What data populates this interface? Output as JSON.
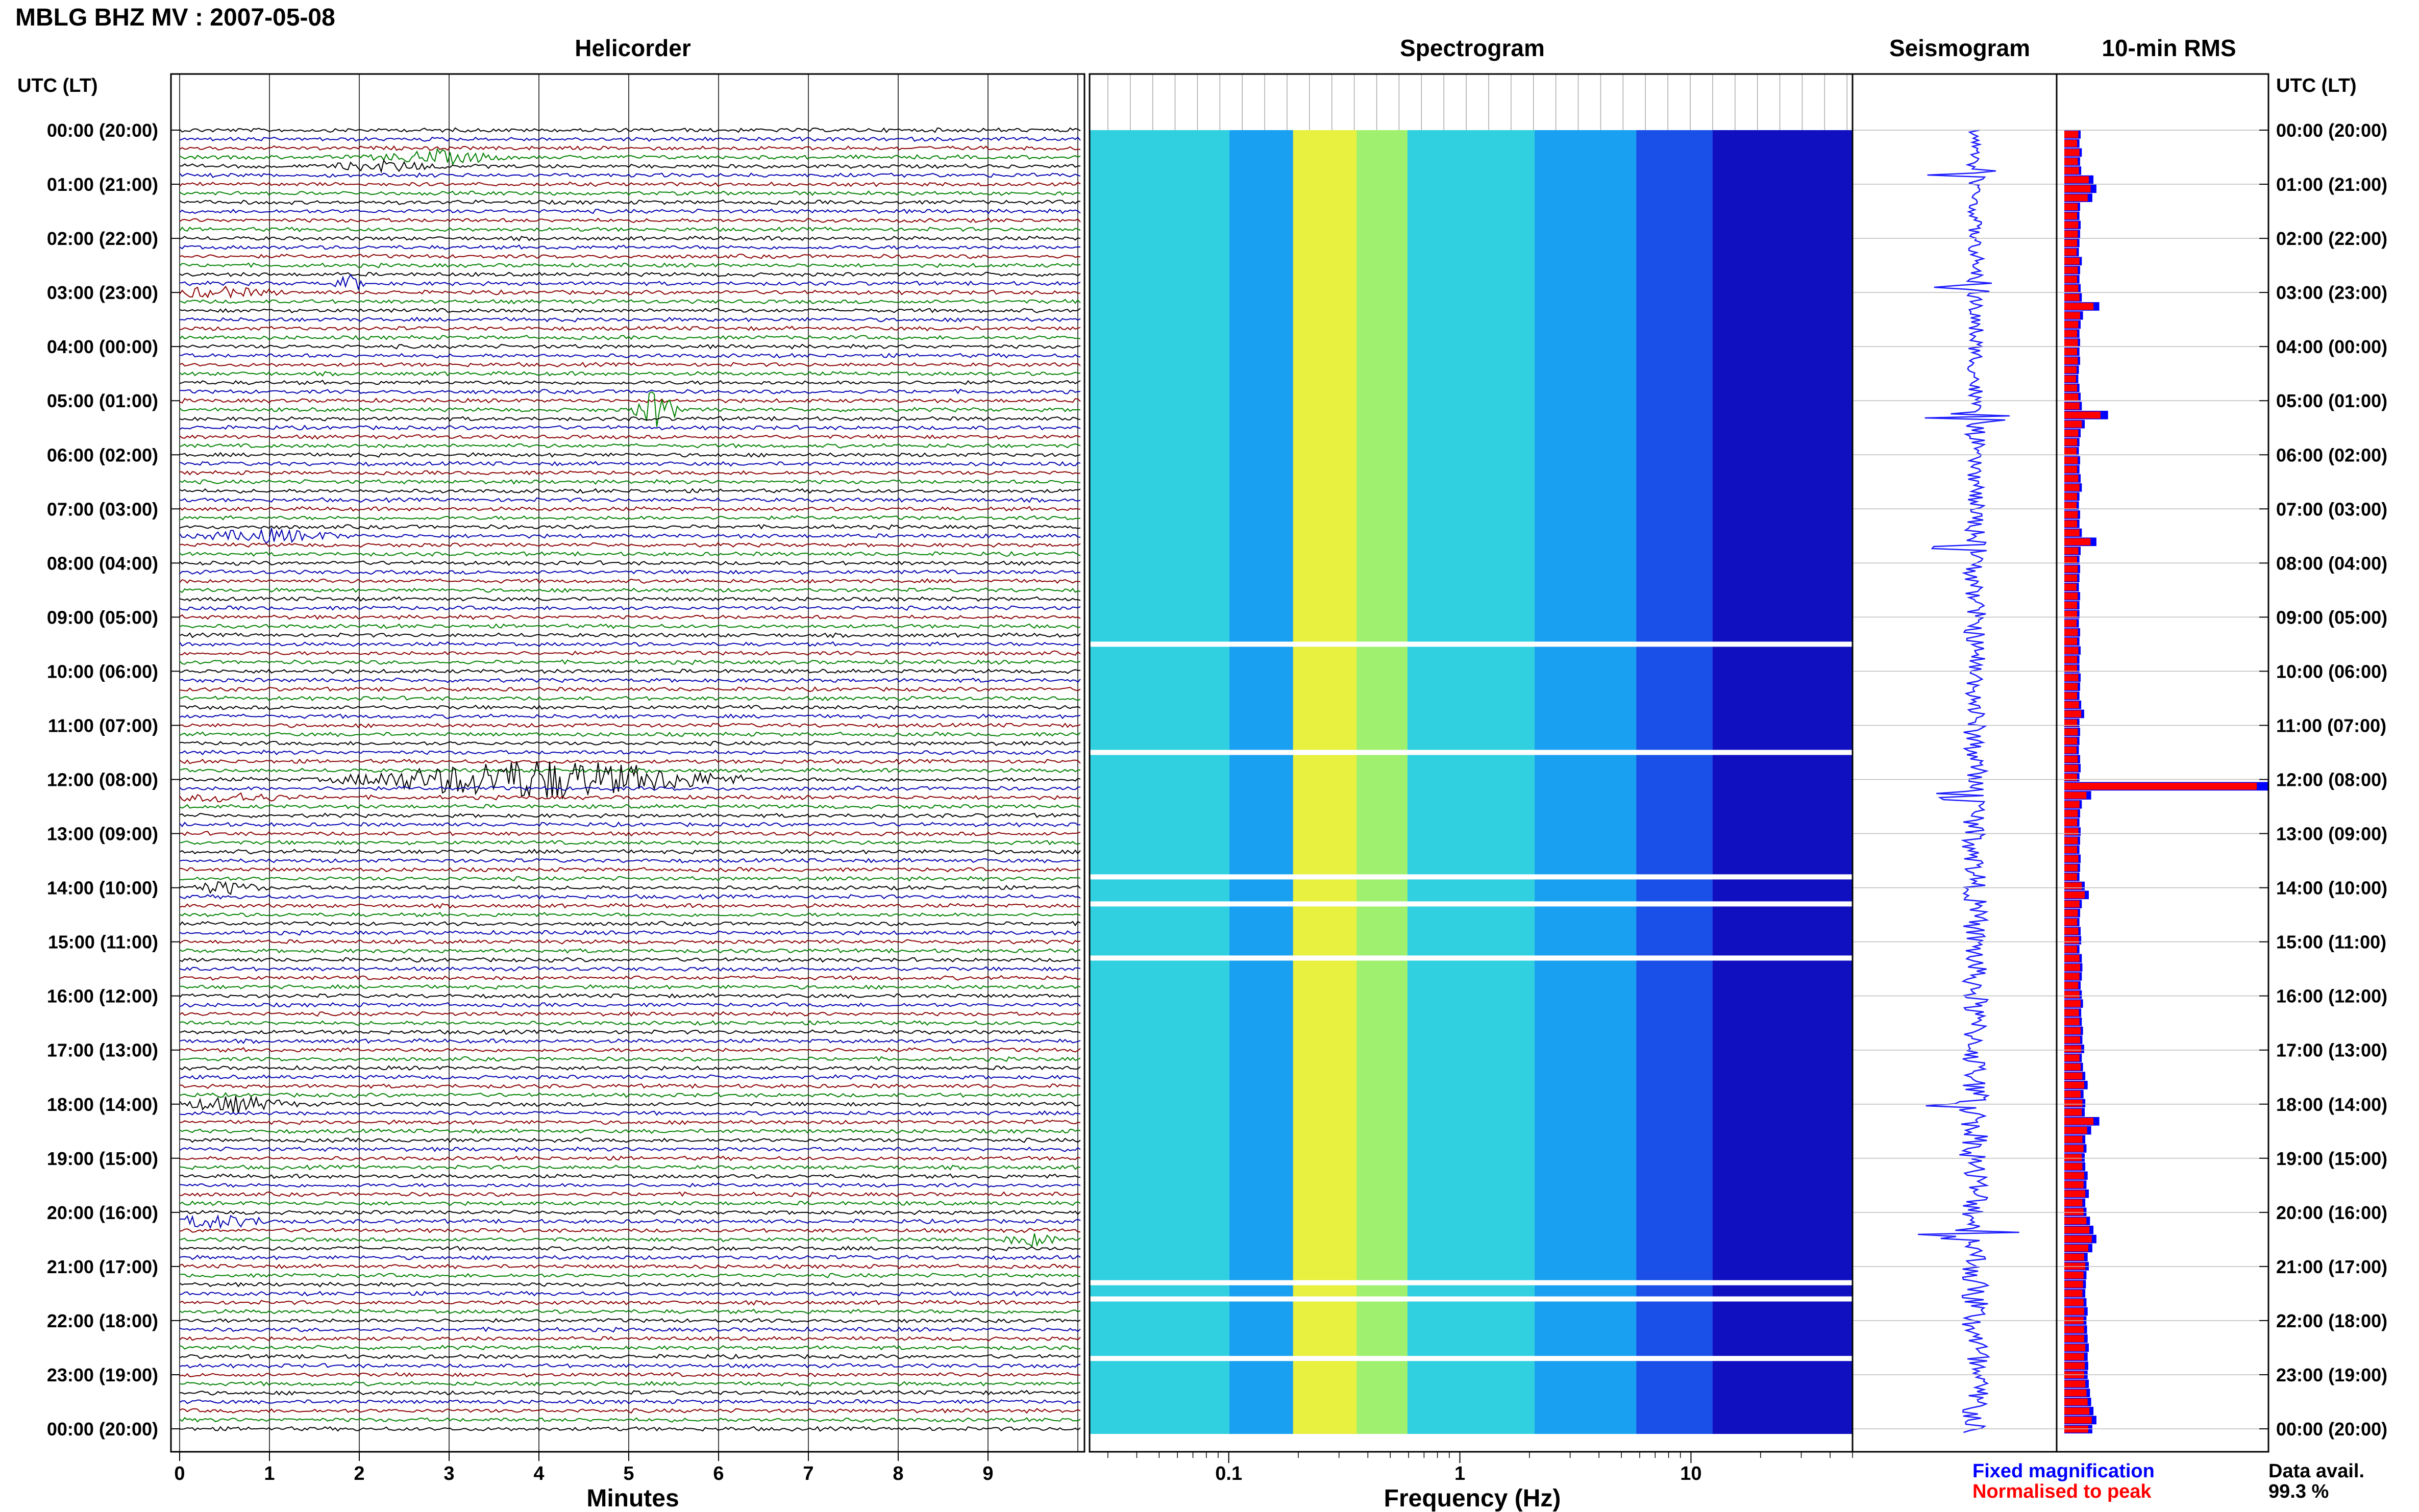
{
  "header": {
    "title": "MBLG BHZ MV : 2007-05-08",
    "panel_titles": {
      "helicorder": "Helicorder",
      "spectrogram": "Spectrogram",
      "seismogram": "Seismogram",
      "rms": "10-min RMS"
    },
    "axis_caption_left": "UTC (LT)",
    "axis_caption_right": "UTC (LT)"
  },
  "chart_data": [
    {
      "type": "line",
      "panel": "Helicorder",
      "xlabel": "Minutes",
      "x_ticks": [
        "0",
        "1",
        "2",
        "3",
        "4",
        "5",
        "6",
        "7",
        "8",
        "9"
      ],
      "xlim": [
        0,
        10
      ],
      "y_ticks": [
        "00:00 (20:00)",
        "01:00 (21:00)",
        "02:00 (22:00)",
        "03:00 (23:00)",
        "04:00 (00:00)",
        "05:00 (01:00)",
        "06:00 (02:00)",
        "07:00 (03:00)",
        "08:00 (04:00)",
        "09:00 (05:00)",
        "10:00 (06:00)",
        "11:00 (07:00)",
        "12:00 (08:00)",
        "13:00 (09:00)",
        "14:00 (10:00)",
        "15:00 (11:00)",
        "16:00 (12:00)",
        "17:00 (13:00)",
        "18:00 (14:00)",
        "19:00 (15:00)",
        "20:00 (16:00)",
        "21:00 (17:00)",
        "22:00 (18:00)",
        "23:00 (19:00)",
        "00:00 (20:00)"
      ],
      "traces_per_hour": 6,
      "trace_colors": [
        "#000000",
        "#0000b0",
        "#8b0000",
        "#008000"
      ],
      "events": [
        {
          "hour": 0.5,
          "minute": 2.9,
          "amp": 4,
          "dur": 0.9
        },
        {
          "hour": 0.67,
          "minute": 2.3,
          "amp": 3,
          "dur": 0.8
        },
        {
          "hour": 3.0,
          "minute": 0.4,
          "amp": 3,
          "dur": 0.9
        },
        {
          "hour": 2.83,
          "minute": 1.9,
          "amp": 5,
          "dur": 0.2
        },
        {
          "hour": 5.17,
          "minute": 5.3,
          "amp": 14,
          "dur": 0.3
        },
        {
          "hour": 7.5,
          "minute": 1.0,
          "amp": 4,
          "dur": 1.0
        },
        {
          "hour": 12.0,
          "minute": 4.0,
          "amp": 14,
          "dur": 2.5
        },
        {
          "hour": 12.33,
          "minute": 0.6,
          "amp": 3,
          "dur": 0.8
        },
        {
          "hour": 14.0,
          "minute": 0.5,
          "amp": 4,
          "dur": 0.5
        },
        {
          "hour": 18.0,
          "minute": 0.6,
          "amp": 5,
          "dur": 0.8
        },
        {
          "hour": 20.17,
          "minute": 0.4,
          "amp": 4,
          "dur": 0.8
        },
        {
          "hour": 20.5,
          "minute": 9.5,
          "amp": 4,
          "dur": 0.4
        }
      ]
    },
    {
      "type": "heatmap",
      "panel": "Spectrogram",
      "xlabel": "Frequency (Hz)",
      "x_ticks": [
        "0.1",
        "1",
        "10"
      ],
      "xlim": [
        0.025,
        50
      ],
      "x_scale": "log",
      "data_gap_hours": [
        9.5,
        11.5,
        13.8,
        14.3,
        15.3,
        21.3,
        21.6,
        22.7
      ],
      "colormap": [
        "#1010c0",
        "#1a50e8",
        "#1aa0f0",
        "#30d0e0",
        "#a0f070",
        "#e8f040"
      ]
    },
    {
      "type": "line",
      "panel": "Seismogram",
      "events_hours": [
        0.8,
        2.9,
        5.3,
        7.7,
        12.3,
        18.0,
        20.4
      ]
    },
    {
      "type": "bar",
      "panel": "10-min RMS",
      "orientation": "horizontal",
      "series": [
        {
          "name": "Fixed magnification",
          "color": "#0000ff",
          "values": [
            0.28,
            0.26,
            0.3,
            0.27,
            0.29,
            0.5,
            0.55,
            0.48,
            0.27,
            0.26,
            0.28,
            0.27,
            0.26,
            0.25,
            0.3,
            0.27,
            0.26,
            0.28,
            0.3,
            0.6,
            0.32,
            0.28,
            0.26,
            0.27,
            0.26,
            0.27,
            0.25,
            0.24,
            0.26,
            0.28,
            0.3,
            0.75,
            0.35,
            0.28,
            0.26,
            0.25,
            0.27,
            0.26,
            0.28,
            0.3,
            0.26,
            0.25,
            0.27,
            0.26,
            0.3,
            0.55,
            0.28,
            0.26,
            0.27,
            0.26,
            0.25,
            0.27,
            0.26,
            0.26,
            0.25,
            0.27,
            0.26,
            0.28,
            0.26,
            0.26,
            0.28,
            0.27,
            0.26,
            0.29,
            0.34,
            0.26,
            0.27,
            0.26,
            0.25,
            0.27,
            0.28,
            0.26,
            3.5,
            0.46,
            0.3,
            0.27,
            0.26,
            0.28,
            0.27,
            0.26,
            0.28,
            0.27,
            0.26,
            0.35,
            0.42,
            0.3,
            0.27,
            0.26,
            0.28,
            0.29,
            0.26,
            0.3,
            0.31,
            0.3,
            0.28,
            0.3,
            0.32,
            0.29,
            0.3,
            0.32,
            0.31,
            0.34,
            0.3,
            0.32,
            0.36,
            0.4,
            0.33,
            0.36,
            0.35,
            0.6,
            0.46,
            0.36,
            0.38,
            0.35,
            0.36,
            0.4,
            0.38,
            0.42,
            0.36,
            0.38,
            0.44,
            0.5,
            0.55,
            0.48,
            0.4,
            0.42,
            0.38,
            0.37,
            0.36,
            0.38,
            0.4,
            0.38,
            0.39,
            0.4,
            0.42,
            0.4,
            0.41,
            0.4,
            0.42,
            0.44,
            0.46,
            0.5,
            0.55,
            0.48
          ]
        },
        {
          "name": "Normalised to peak",
          "color": "#ff0000",
          "values": [
            0.24,
            0.22,
            0.26,
            0.23,
            0.25,
            0.42,
            0.45,
            0.4,
            0.23,
            0.22,
            0.24,
            0.23,
            0.22,
            0.21,
            0.26,
            0.23,
            0.22,
            0.24,
            0.26,
            0.5,
            0.27,
            0.24,
            0.22,
            0.23,
            0.22,
            0.23,
            0.21,
            0.2,
            0.22,
            0.24,
            0.26,
            0.62,
            0.3,
            0.24,
            0.22,
            0.21,
            0.23,
            0.22,
            0.24,
            0.26,
            0.22,
            0.21,
            0.23,
            0.22,
            0.26,
            0.45,
            0.24,
            0.22,
            0.23,
            0.22,
            0.21,
            0.23,
            0.22,
            0.22,
            0.21,
            0.23,
            0.22,
            0.24,
            0.22,
            0.22,
            0.24,
            0.23,
            0.22,
            0.25,
            0.29,
            0.22,
            0.23,
            0.22,
            0.21,
            0.23,
            0.24,
            0.22,
            3.3,
            0.38,
            0.26,
            0.23,
            0.22,
            0.24,
            0.23,
            0.22,
            0.24,
            0.23,
            0.22,
            0.3,
            0.35,
            0.26,
            0.23,
            0.22,
            0.24,
            0.25,
            0.22,
            0.26,
            0.27,
            0.26,
            0.24,
            0.26,
            0.28,
            0.25,
            0.26,
            0.28,
            0.27,
            0.29,
            0.26,
            0.28,
            0.31,
            0.34,
            0.28,
            0.31,
            0.3,
            0.5,
            0.39,
            0.31,
            0.33,
            0.3,
            0.31,
            0.34,
            0.33,
            0.36,
            0.31,
            0.33,
            0.38,
            0.43,
            0.47,
            0.41,
            0.34,
            0.36,
            0.33,
            0.32,
            0.31,
            0.33,
            0.34,
            0.33,
            0.34,
            0.34,
            0.36,
            0.34,
            0.35,
            0.34,
            0.36,
            0.38,
            0.4,
            0.43,
            0.47,
            0.41
          ]
        }
      ]
    }
  ],
  "legend": {
    "fixed_label": "Fixed magnification",
    "normalised_label": "Normalised to peak",
    "fixed_color": "#0000ff",
    "normalised_color": "#ff0000"
  },
  "availability": {
    "label": "Data avail.",
    "value": "99.3 %"
  }
}
